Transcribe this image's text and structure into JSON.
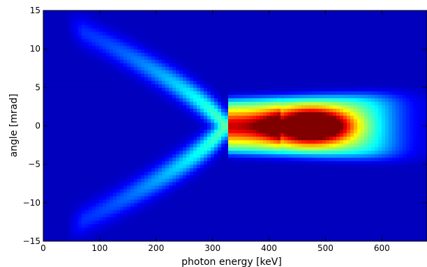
{
  "chart_data": {
    "type": "heatmap",
    "title": "",
    "xlabel": "photon energy [keV]",
    "ylabel": "angle [mrad]",
    "xlim": [
      0,
      680
    ],
    "ylim": [
      -15,
      15
    ],
    "x_ticks": [
      0,
      100,
      200,
      300,
      400,
      500,
      600
    ],
    "y_ticks": [
      -15,
      -10,
      -5,
      0,
      5,
      10,
      15
    ],
    "x_tick_labels": [
      "0",
      "100",
      "200",
      "300",
      "400",
      "500",
      "600"
    ],
    "y_tick_labels": [
      "−15",
      "−10",
      "−5",
      "0",
      "5",
      "10",
      "15"
    ],
    "colormap": "jet",
    "grid": false,
    "colors": {
      "low": "#00008f",
      "high": "#800000"
    },
    "features": [
      {
        "name": "peak",
        "x": 475,
        "y": 0,
        "value": 1.0
      },
      {
        "name": "emission-cone-upper-arm",
        "x_range": [
          50,
          320
        ],
        "y_range": [
          13,
          0
        ]
      },
      {
        "name": "emission-cone-lower-arm",
        "x_range": [
          50,
          320
        ],
        "y_range": [
          -13,
          0
        ]
      }
    ]
  }
}
